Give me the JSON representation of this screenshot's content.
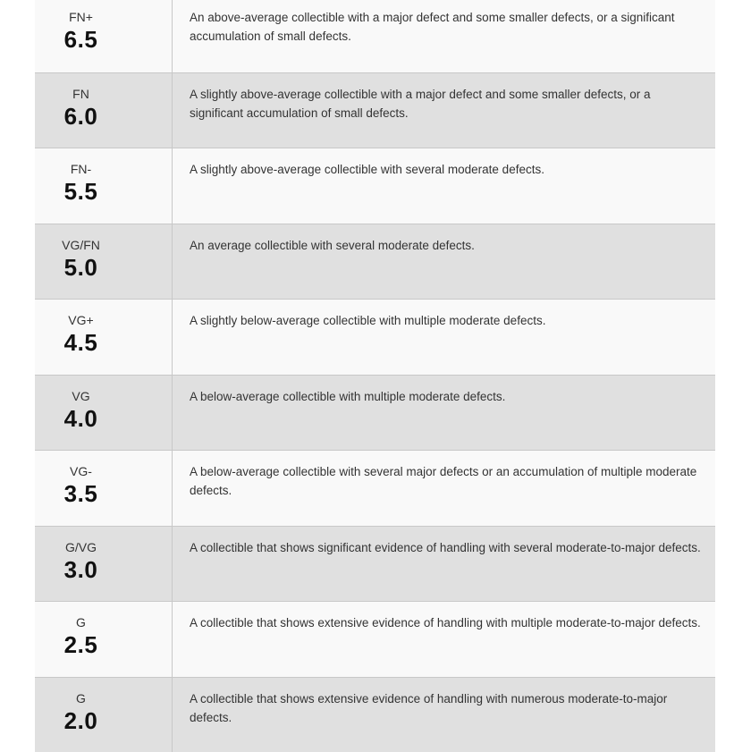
{
  "table": {
    "colors": {
      "row_light": "#f9f9f9",
      "row_dark": "#e0e0e0",
      "divider": "#c8c8c8",
      "label_text": "#333333",
      "value_text": "#111111"
    },
    "rows": [
      {
        "grade": "FN+",
        "value": "6.5",
        "description": "An above-average collectible with a major defect and some smaller defects, or a significant accumulation of small defects."
      },
      {
        "grade": "FN",
        "value": "6.0",
        "description": "A slightly above-average collectible with a major defect and some smaller defects, or a significant accumulation of small defects."
      },
      {
        "grade": "FN-",
        "value": "5.5",
        "description": "A slightly above-average collectible with several moderate defects."
      },
      {
        "grade": "VG/FN",
        "value": "5.0",
        "description": "An average collectible with several moderate defects."
      },
      {
        "grade": "VG+",
        "value": "4.5",
        "description": "A slightly below-average collectible with multiple moderate defects."
      },
      {
        "grade": "VG",
        "value": "4.0",
        "description": "A below-average collectible with multiple moderate defects."
      },
      {
        "grade": "VG-",
        "value": "3.5",
        "description": "A below-average collectible with several major defects or an accumulation of multiple moderate defects."
      },
      {
        "grade": "G/VG",
        "value": "3.0",
        "description": "A collectible that shows significant evidence of handling with several moderate-to-major defects."
      },
      {
        "grade": "G",
        "value": "2.5",
        "description": "A collectible that shows extensive evidence of handling with multiple moderate-to-major defects."
      },
      {
        "grade": "G",
        "value": "2.0",
        "description": "A collectible that shows extensive evidence of handling with numerous moderate-to-major defects."
      }
    ]
  }
}
